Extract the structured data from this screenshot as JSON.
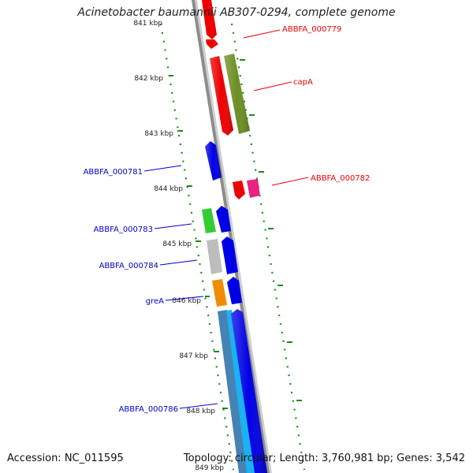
{
  "title": "Acinetobacter baumannii AB307-0294, complete genome",
  "footer": {
    "accession": "Accession: NC_011595",
    "summary": "Topology: circular; Length: 3,760,981 bp; Genes: 3,542"
  },
  "ruler_labels": [
    "841 kbp",
    "842 kbp",
    "843 kbp",
    "844 kbp",
    "845 kbp",
    "846 kbp",
    "847 kbp",
    "848 kbp",
    "849 kbp"
  ],
  "gene_labels": [
    {
      "text": "ABBFA_000779",
      "color": "#ee0000"
    },
    {
      "text": "capA",
      "color": "#ee0000"
    },
    {
      "text": "ABBFA_000782",
      "color": "#ee0000"
    },
    {
      "text": "ABBFA_000781",
      "color": "#0000cc"
    },
    {
      "text": "ABBFA_000783",
      "color": "#0000cc"
    },
    {
      "text": "ABBFA_000784",
      "color": "#0000cc"
    },
    {
      "text": "greA",
      "color": "#0000cc"
    },
    {
      "text": "ABBFA_000786",
      "color": "#0000cc"
    }
  ],
  "colors": {
    "backbone": "#8c8c8c",
    "tick": "#1f8a1f",
    "red": "#ee0000",
    "olive": "#6b8e23",
    "magenta": "#e8247f",
    "blue": "#0000e6",
    "green": "#33cc33",
    "grey": "#bdbdbd",
    "orange": "#f08c00",
    "steelblue": "#4682b4",
    "cyan": "#1ab2f0"
  }
}
